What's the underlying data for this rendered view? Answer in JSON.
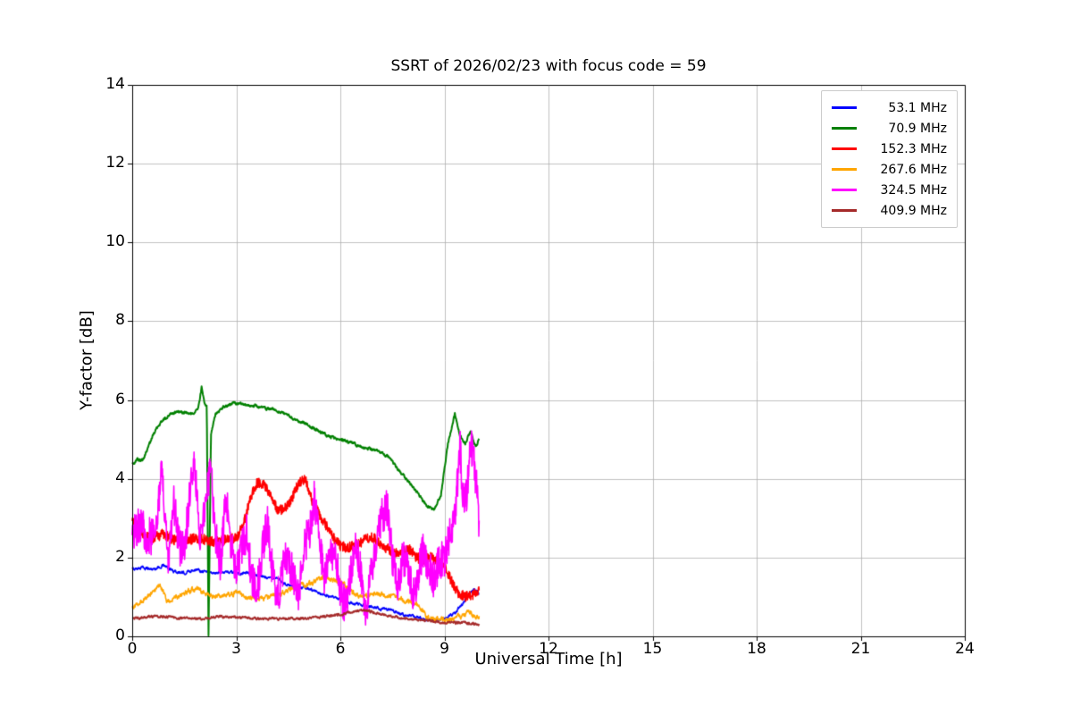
{
  "chart_data": {
    "type": "line",
    "title": "SSRT of 2026/02/23 with focus code = 59",
    "xlabel": "Universal Time [h]",
    "ylabel": "Y-factor [dB]",
    "xlim": [
      0,
      24
    ],
    "ylim": [
      0,
      14
    ],
    "xticks": [
      0,
      3,
      6,
      9,
      12,
      15,
      18,
      21,
      24
    ],
    "yticks": [
      0,
      2,
      4,
      6,
      8,
      10,
      12,
      14
    ],
    "grid": true,
    "grid_color": "#b0b0b0",
    "legend_position": "upper right",
    "series": [
      {
        "name": "53.1 MHz",
        "color": "#0000FF",
        "noise": 0.07,
        "smooth": true,
        "lw": 1.6,
        "xrange": [
          0,
          10
        ],
        "keypoints": [
          [
            0,
            1.7
          ],
          [
            0.3,
            1.75
          ],
          [
            0.6,
            1.7
          ],
          [
            0.9,
            1.8
          ],
          [
            1.2,
            1.65
          ],
          [
            1.5,
            1.6
          ],
          [
            1.8,
            1.7
          ],
          [
            2.1,
            1.65
          ],
          [
            2.4,
            1.6
          ],
          [
            2.7,
            1.65
          ],
          [
            3.0,
            1.6
          ],
          [
            3.3,
            1.6
          ],
          [
            3.6,
            1.55
          ],
          [
            3.9,
            1.5
          ],
          [
            4.2,
            1.45
          ],
          [
            4.5,
            1.3
          ],
          [
            4.8,
            1.25
          ],
          [
            5.1,
            1.2
          ],
          [
            5.4,
            1.1
          ],
          [
            5.7,
            1.0
          ],
          [
            6.0,
            0.95
          ],
          [
            6.3,
            0.85
          ],
          [
            6.6,
            0.8
          ],
          [
            6.9,
            0.75
          ],
          [
            7.2,
            0.7
          ],
          [
            7.5,
            0.65
          ],
          [
            7.8,
            0.55
          ],
          [
            8.1,
            0.5
          ],
          [
            8.4,
            0.45
          ],
          [
            8.7,
            0.4
          ],
          [
            9.0,
            0.45
          ],
          [
            9.3,
            0.6
          ],
          [
            9.5,
            0.8
          ],
          [
            9.7,
            1.05
          ],
          [
            9.85,
            1.2
          ],
          [
            10,
            1.1
          ]
        ]
      },
      {
        "name": "70.9 MHz",
        "color": "#008000",
        "noise": 0.07,
        "smooth": true,
        "lw": 2.0,
        "xrange": [
          0,
          10
        ],
        "keypoints": [
          [
            0,
            4.35
          ],
          [
            0.15,
            4.5
          ],
          [
            0.3,
            4.45
          ],
          [
            0.5,
            4.9
          ],
          [
            0.7,
            5.3
          ],
          [
            0.9,
            5.5
          ],
          [
            1.1,
            5.65
          ],
          [
            1.4,
            5.7
          ],
          [
            1.7,
            5.65
          ],
          [
            1.9,
            5.75
          ],
          [
            2.0,
            6.35
          ],
          [
            2.08,
            5.9
          ],
          [
            2.15,
            5.85
          ],
          [
            2.2,
            0.0
          ],
          [
            2.27,
            5.1
          ],
          [
            2.4,
            5.65
          ],
          [
            2.6,
            5.8
          ],
          [
            2.9,
            5.9
          ],
          [
            3.2,
            5.9
          ],
          [
            3.5,
            5.85
          ],
          [
            3.8,
            5.8
          ],
          [
            4.1,
            5.75
          ],
          [
            4.4,
            5.65
          ],
          [
            4.7,
            5.5
          ],
          [
            5.0,
            5.4
          ],
          [
            5.3,
            5.25
          ],
          [
            5.6,
            5.1
          ],
          [
            5.9,
            5.0
          ],
          [
            6.2,
            4.95
          ],
          [
            6.5,
            4.85
          ],
          [
            6.8,
            4.75
          ],
          [
            7.1,
            4.7
          ],
          [
            7.4,
            4.55
          ],
          [
            7.7,
            4.2
          ],
          [
            8.0,
            3.9
          ],
          [
            8.3,
            3.55
          ],
          [
            8.5,
            3.3
          ],
          [
            8.7,
            3.2
          ],
          [
            8.9,
            3.6
          ],
          [
            9.1,
            4.9
          ],
          [
            9.3,
            5.65
          ],
          [
            9.45,
            5.1
          ],
          [
            9.6,
            4.9
          ],
          [
            9.75,
            5.2
          ],
          [
            9.9,
            4.8
          ],
          [
            10,
            5.0
          ]
        ]
      },
      {
        "name": "152.3 MHz",
        "color": "#FF0000",
        "noise": 0.13,
        "smooth": false,
        "lw": 1.6,
        "xrange": [
          0,
          10
        ],
        "keypoints": [
          [
            0,
            3.0
          ],
          [
            0.2,
            2.7
          ],
          [
            0.4,
            2.55
          ],
          [
            0.6,
            2.5
          ],
          [
            0.9,
            2.6
          ],
          [
            1.2,
            2.45
          ],
          [
            1.5,
            2.4
          ],
          [
            1.8,
            2.5
          ],
          [
            2.1,
            2.45
          ],
          [
            2.4,
            2.4
          ],
          [
            2.7,
            2.45
          ],
          [
            3.0,
            2.5
          ],
          [
            3.2,
            2.8
          ],
          [
            3.4,
            3.5
          ],
          [
            3.6,
            3.9
          ],
          [
            3.8,
            3.85
          ],
          [
            4.0,
            3.6
          ],
          [
            4.2,
            3.2
          ],
          [
            4.4,
            3.25
          ],
          [
            4.6,
            3.5
          ],
          [
            4.8,
            3.9
          ],
          [
            5.0,
            4.0
          ],
          [
            5.2,
            3.4
          ],
          [
            5.4,
            3.1
          ],
          [
            5.6,
            2.8
          ],
          [
            5.8,
            2.5
          ],
          [
            6.0,
            2.3
          ],
          [
            6.2,
            2.25
          ],
          [
            6.4,
            2.3
          ],
          [
            6.6,
            2.4
          ],
          [
            6.8,
            2.5
          ],
          [
            7.0,
            2.5
          ],
          [
            7.2,
            2.3
          ],
          [
            7.4,
            2.2
          ],
          [
            7.6,
            2.1
          ],
          [
            7.8,
            2.15
          ],
          [
            8.0,
            2.2
          ],
          [
            8.2,
            2.0
          ],
          [
            8.4,
            1.95
          ],
          [
            8.6,
            2.0
          ],
          [
            8.8,
            1.9
          ],
          [
            9.0,
            1.8
          ],
          [
            9.2,
            1.4
          ],
          [
            9.4,
            1.1
          ],
          [
            9.6,
            1.0
          ],
          [
            9.8,
            1.05
          ],
          [
            10,
            1.2
          ]
        ]
      },
      {
        "name": "267.6 MHz",
        "color": "#FFA500",
        "noise": 0.13,
        "smooth": true,
        "lw": 1.6,
        "xrange": [
          0,
          10
        ],
        "keypoints": [
          [
            0,
            0.75
          ],
          [
            0.3,
            0.9
          ],
          [
            0.6,
            1.1
          ],
          [
            0.8,
            1.3
          ],
          [
            1.0,
            0.9
          ],
          [
            1.3,
            1.0
          ],
          [
            1.6,
            1.15
          ],
          [
            1.9,
            1.2
          ],
          [
            2.2,
            1.05
          ],
          [
            2.5,
            1.0
          ],
          [
            2.8,
            1.1
          ],
          [
            3.1,
            1.1
          ],
          [
            3.4,
            0.95
          ],
          [
            3.7,
            0.95
          ],
          [
            4.0,
            1.0
          ],
          [
            4.3,
            1.1
          ],
          [
            4.6,
            1.2
          ],
          [
            4.9,
            1.3
          ],
          [
            5.2,
            1.35
          ],
          [
            5.5,
            1.5
          ],
          [
            5.8,
            1.45
          ],
          [
            6.1,
            1.35
          ],
          [
            6.4,
            1.05
          ],
          [
            6.7,
            1.0
          ],
          [
            7.0,
            1.1
          ],
          [
            7.3,
            1.05
          ],
          [
            7.6,
            1.0
          ],
          [
            7.9,
            0.9
          ],
          [
            8.2,
            0.8
          ],
          [
            8.5,
            0.5
          ],
          [
            8.8,
            0.45
          ],
          [
            9.1,
            0.4
          ],
          [
            9.4,
            0.5
          ],
          [
            9.7,
            0.6
          ],
          [
            10,
            0.5
          ]
        ]
      },
      {
        "name": "324.5 MHz",
        "color": "#FF00FF",
        "noise": 0.5,
        "smooth": false,
        "lw": 1.6,
        "xrange": [
          0,
          10
        ],
        "keypoints": [
          [
            0,
            2.7
          ],
          [
            0.2,
            2.85
          ],
          [
            0.4,
            2.6
          ],
          [
            0.6,
            2.5
          ],
          [
            0.75,
            3.2
          ],
          [
            0.85,
            4.35
          ],
          [
            0.95,
            2.8
          ],
          [
            1.05,
            1.9
          ],
          [
            1.2,
            3.4
          ],
          [
            1.35,
            2.3
          ],
          [
            1.5,
            2.1
          ],
          [
            1.65,
            3.6
          ],
          [
            1.8,
            4.5
          ],
          [
            1.95,
            2.4
          ],
          [
            2.1,
            3.2
          ],
          [
            2.25,
            4.4
          ],
          [
            2.4,
            2.6
          ],
          [
            2.55,
            1.8
          ],
          [
            2.7,
            3.7
          ],
          [
            2.85,
            2.4
          ],
          [
            3.0,
            1.6
          ],
          [
            3.15,
            2.2
          ],
          [
            3.3,
            2.6
          ],
          [
            3.45,
            1.4
          ],
          [
            3.6,
            1.1
          ],
          [
            3.75,
            2.2
          ],
          [
            3.9,
            2.9
          ],
          [
            4.05,
            1.6
          ],
          [
            4.2,
            1.0
          ],
          [
            4.35,
            1.7
          ],
          [
            4.5,
            2.1
          ],
          [
            4.65,
            1.4
          ],
          [
            4.8,
            1.1
          ],
          [
            4.95,
            2.3
          ],
          [
            5.1,
            2.6
          ],
          [
            5.25,
            3.5
          ],
          [
            5.4,
            2.3
          ],
          [
            5.55,
            1.4
          ],
          [
            5.7,
            2.0
          ],
          [
            5.85,
            2.3
          ],
          [
            6.0,
            1.1
          ],
          [
            6.15,
            0.7
          ],
          [
            6.3,
            1.6
          ],
          [
            6.45,
            2.4
          ],
          [
            6.6,
            1.5
          ],
          [
            6.75,
            0.6
          ],
          [
            6.9,
            1.7
          ],
          [
            7.05,
            2.3
          ],
          [
            7.2,
            3.0
          ],
          [
            7.35,
            3.3
          ],
          [
            7.5,
            2.0
          ],
          [
            7.65,
            1.3
          ],
          [
            7.8,
            2.0
          ],
          [
            7.95,
            1.7
          ],
          [
            8.1,
            1.0
          ],
          [
            8.25,
            1.6
          ],
          [
            8.4,
            2.2
          ],
          [
            8.55,
            1.8
          ],
          [
            8.7,
            1.4
          ],
          [
            8.85,
            1.9
          ],
          [
            9.0,
            2.0
          ],
          [
            9.15,
            2.5
          ],
          [
            9.3,
            3.0
          ],
          [
            9.45,
            4.8
          ],
          [
            9.55,
            3.4
          ],
          [
            9.65,
            3.6
          ],
          [
            9.75,
            4.9
          ],
          [
            9.85,
            4.6
          ],
          [
            10,
            2.9
          ]
        ]
      },
      {
        "name": "409.9 MHz",
        "color": "#A52A2A",
        "noise": 0.06,
        "smooth": true,
        "lw": 1.8,
        "xrange": [
          0,
          10
        ],
        "keypoints": [
          [
            0,
            0.45
          ],
          [
            0.5,
            0.5
          ],
          [
            1.0,
            0.5
          ],
          [
            1.5,
            0.45
          ],
          [
            2.0,
            0.45
          ],
          [
            2.5,
            0.5
          ],
          [
            3.0,
            0.5
          ],
          [
            3.5,
            0.45
          ],
          [
            4.0,
            0.45
          ],
          [
            4.5,
            0.45
          ],
          [
            5.0,
            0.45
          ],
          [
            5.5,
            0.5
          ],
          [
            6.0,
            0.55
          ],
          [
            6.5,
            0.65
          ],
          [
            6.8,
            0.65
          ],
          [
            7.0,
            0.6
          ],
          [
            7.5,
            0.5
          ],
          [
            8.0,
            0.45
          ],
          [
            8.5,
            0.4
          ],
          [
            9.0,
            0.35
          ],
          [
            9.5,
            0.35
          ],
          [
            10,
            0.3
          ]
        ]
      }
    ]
  }
}
